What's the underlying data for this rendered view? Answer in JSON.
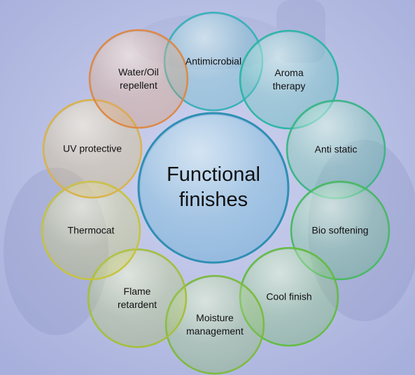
{
  "diagram": {
    "center": {
      "title_line1": "Functional",
      "title_line2": "finishes",
      "color": "#48a7cf"
    },
    "nodes": [
      {
        "line1": "Antimicrobial",
        "line2": "",
        "color": "#3bb1b9"
      },
      {
        "line1": "Aroma",
        "line2": "therapy",
        "color": "#2fb6a6"
      },
      {
        "line1": "Anti static",
        "line2": "",
        "color": "#3cb686"
      },
      {
        "line1": "Bio softening",
        "line2": "",
        "color": "#4bb964"
      },
      {
        "line1": "Cool finish",
        "line2": "",
        "color": "#64bc43"
      },
      {
        "line1": "Moisture",
        "line2": "management",
        "color": "#7dbb3f"
      },
      {
        "line1": "Flame",
        "line2": "retardent",
        "color": "#a5bf3b"
      },
      {
        "line1": "Thermocat",
        "line2": "",
        "color": "#c6c43d"
      },
      {
        "line1": "UV protective",
        "line2": "",
        "color": "#d9b34a"
      },
      {
        "line1": "Water/Oil",
        "line2": "repellent",
        "color": "#dc8a47"
      }
    ]
  }
}
